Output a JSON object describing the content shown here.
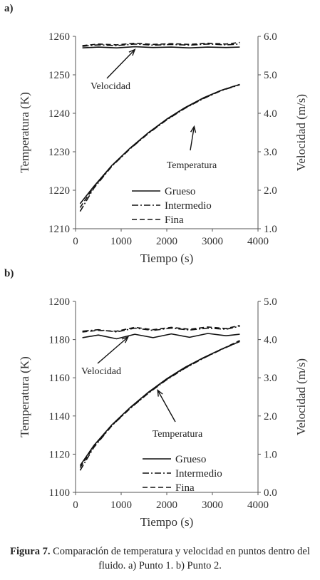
{
  "chart_data": [
    {
      "panel_label": "a)",
      "type": "line",
      "xlabel": "Tiempo (s)",
      "ylabel": "Temperatura (K)",
      "y2label": "Velocidad (m/s)",
      "xlim": [
        0,
        4000
      ],
      "ylim": [
        1210,
        1260
      ],
      "y2lim": [
        1.0,
        6.0
      ],
      "xticks": [
        "0",
        "1000",
        "2000",
        "3000",
        "4000"
      ],
      "yticks": [
        "1210",
        "1220",
        "1230",
        "1240",
        "1250",
        "1260"
      ],
      "y2ticks": [
        "1.0",
        "2.0",
        "3.0",
        "4.0",
        "5.0",
        "6.0"
      ],
      "grid": false,
      "legend_position": "bottom-right",
      "annotations": [
        {
          "text": "Velocidad",
          "arrow_to": [
            1300,
            1258.3
          ]
        },
        {
          "text": "Temperatura",
          "arrow_to": [
            2600,
            1237.3
          ]
        }
      ],
      "series": [
        {
          "name": "Grueso",
          "style": "solid",
          "axis": "temperature",
          "x": [
            100,
            400,
            800,
            1200,
            1600,
            2000,
            2400,
            2800,
            3200,
            3600
          ],
          "y": [
            1216.5,
            1221.0,
            1226.5,
            1231.0,
            1235.0,
            1238.5,
            1241.5,
            1244.0,
            1246.0,
            1247.5
          ]
        },
        {
          "name": "Intermedio",
          "style": "dashdot",
          "axis": "temperature",
          "x": [
            100,
            400,
            800,
            1200,
            1600,
            2000,
            2400,
            2800,
            3200,
            3600
          ],
          "y": [
            1214.5,
            1220.5,
            1226.3,
            1230.8,
            1234.8,
            1238.3,
            1241.3,
            1243.8,
            1245.9,
            1247.4
          ]
        },
        {
          "name": "Fina",
          "style": "dashed",
          "axis": "temperature",
          "x": [
            100,
            400,
            800,
            1200,
            1600,
            2000,
            2400,
            2800,
            3200,
            3600
          ],
          "y": [
            1215.5,
            1220.8,
            1226.4,
            1230.9,
            1234.9,
            1238.4,
            1241.4,
            1243.9,
            1246.0,
            1247.5
          ]
        },
        {
          "name": "Grueso",
          "style": "solid",
          "axis": "velocity",
          "x": [
            150,
            500,
            900,
            1300,
            1700,
            2100,
            2500,
            2900,
            3300,
            3600
          ],
          "y": [
            5.7,
            5.72,
            5.7,
            5.73,
            5.71,
            5.72,
            5.7,
            5.72,
            5.71,
            5.72
          ]
        },
        {
          "name": "Intermedio",
          "style": "dashdot",
          "axis": "velocity",
          "x": [
            150,
            500,
            900,
            1300,
            1700,
            2100,
            2500,
            2900,
            3300,
            3600
          ],
          "y": [
            5.74,
            5.78,
            5.76,
            5.8,
            5.77,
            5.79,
            5.77,
            5.8,
            5.78,
            5.8
          ]
        },
        {
          "name": "Fina",
          "style": "dashed",
          "axis": "velocity",
          "x": [
            150,
            500,
            900,
            1300,
            1700,
            2100,
            2500,
            2900,
            3300,
            3600
          ],
          "y": [
            5.76,
            5.8,
            5.78,
            5.82,
            5.79,
            5.81,
            5.79,
            5.82,
            5.8,
            5.84
          ]
        }
      ]
    },
    {
      "panel_label": "b)",
      "type": "line",
      "xlabel": "Tiempo (s)",
      "ylabel": "Temperatura (K)",
      "y2label": "Velocidad (m/s)",
      "xlim": [
        0,
        4000
      ],
      "ylim": [
        1100,
        1200
      ],
      "y2lim": [
        0.0,
        5.0
      ],
      "xticks": [
        "0",
        "1000",
        "2000",
        "3000",
        "4000"
      ],
      "yticks": [
        "1100",
        "1120",
        "1140",
        "1160",
        "1180",
        "1200"
      ],
      "y2ticks": [
        "0.0",
        "1.0",
        "2.0",
        "3.0",
        "4.0",
        "5.0"
      ],
      "grid": false,
      "legend_position": "bottom-right",
      "annotations": [
        {
          "text": "Velocidad",
          "arrow_to": [
            1150,
            1181.5
          ]
        },
        {
          "text": "Temperatura",
          "arrow_to": [
            1800,
            1155
          ]
        }
      ],
      "series": [
        {
          "name": "Grueso",
          "style": "solid",
          "axis": "temperature",
          "x": [
            100,
            400,
            800,
            1200,
            1600,
            2000,
            2400,
            2800,
            3200,
            3600
          ],
          "y": [
            1114.0,
            1124.5,
            1135.5,
            1144.5,
            1152.5,
            1159.5,
            1165.5,
            1170.5,
            1175.0,
            1179.0
          ]
        },
        {
          "name": "Intermedio",
          "style": "dashdot",
          "axis": "temperature",
          "x": [
            100,
            400,
            800,
            1200,
            1600,
            2000,
            2400,
            2800,
            3200,
            3600
          ],
          "y": [
            1111.5,
            1123.5,
            1135.0,
            1144.0,
            1152.0,
            1159.0,
            1165.0,
            1170.2,
            1174.8,
            1179.0
          ]
        },
        {
          "name": "Fina",
          "style": "dashed",
          "axis": "temperature",
          "x": [
            100,
            400,
            800,
            1200,
            1600,
            2000,
            2400,
            2800,
            3200,
            3600
          ],
          "y": [
            1113.0,
            1124.0,
            1135.2,
            1144.2,
            1152.2,
            1159.2,
            1165.2,
            1170.3,
            1174.9,
            1179.5
          ]
        },
        {
          "name": "Grueso",
          "style": "solid",
          "axis": "velocity",
          "x": [
            150,
            500,
            900,
            1300,
            1700,
            2100,
            2500,
            2900,
            3300,
            3600
          ],
          "y": [
            4.05,
            4.12,
            4.02,
            4.14,
            4.05,
            4.15,
            4.06,
            4.16,
            4.1,
            4.14
          ]
        },
        {
          "name": "Intermedio",
          "style": "dashdot",
          "axis": "velocity",
          "x": [
            150,
            500,
            900,
            1300,
            1700,
            2100,
            2500,
            2900,
            3300,
            3600
          ],
          "y": [
            4.22,
            4.26,
            4.2,
            4.3,
            4.24,
            4.3,
            4.25,
            4.3,
            4.27,
            4.35
          ]
        },
        {
          "name": "Fina",
          "style": "dashed",
          "axis": "velocity",
          "x": [
            150,
            500,
            900,
            1300,
            1700,
            2100,
            2500,
            2900,
            3300,
            3600
          ],
          "y": [
            4.2,
            4.24,
            4.22,
            4.32,
            4.26,
            4.32,
            4.27,
            4.33,
            4.29,
            4.37
          ]
        }
      ]
    }
  ],
  "caption": {
    "label": "Figura 7.",
    "text": " Comparación de temperatura y velocidad en puntos dentro del fluido. a) Punto 1. b) Punto 2."
  }
}
